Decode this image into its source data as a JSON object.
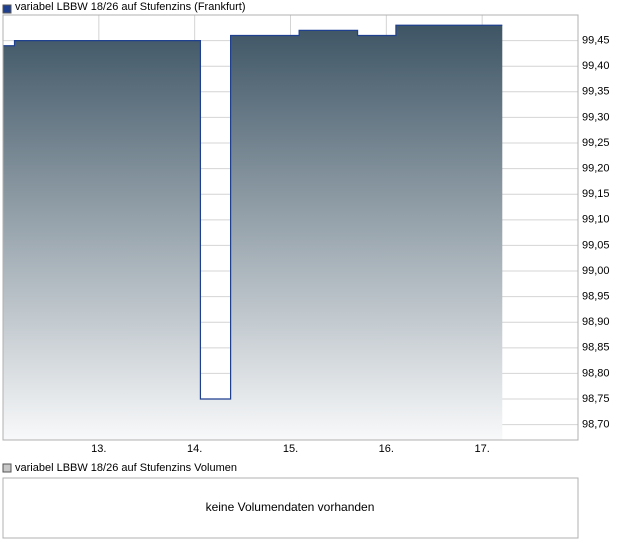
{
  "chart_data": {
    "type": "area",
    "series": [
      {
        "name": "variabel LBBW 18/26 auf Stufenzins (Frankfurt)",
        "color": "#1f3f8f",
        "x": [
          12,
          12.12,
          12.12,
          14.06,
          14.06,
          14.375,
          14.375,
          15.09,
          15.09,
          15.7,
          15.7,
          16.1,
          16.1,
          17.21
        ],
        "values": [
          99.44,
          99.44,
          99.45,
          99.45,
          98.75,
          98.75,
          99.46,
          99.46,
          99.47,
          99.47,
          99.46,
          99.46,
          99.48,
          99.48
        ]
      }
    ],
    "xlim": [
      12,
      18
    ],
    "xticks": [
      {
        "value": 13,
        "label": "13."
      },
      {
        "value": 14,
        "label": "14."
      },
      {
        "value": 15,
        "label": "15."
      },
      {
        "value": 16,
        "label": "16."
      },
      {
        "value": 17,
        "label": "17."
      }
    ],
    "ylim": [
      98.67,
      99.5
    ],
    "yticks": [
      {
        "value": 98.7,
        "label": "98,70"
      },
      {
        "value": 98.75,
        "label": "98,75"
      },
      {
        "value": 98.8,
        "label": "98,80"
      },
      {
        "value": 98.85,
        "label": "98,85"
      },
      {
        "value": 98.9,
        "label": "98,90"
      },
      {
        "value": 98.95,
        "label": "98,95"
      },
      {
        "value": 99.0,
        "label": "99,00"
      },
      {
        "value": 99.05,
        "label": "99,05"
      },
      {
        "value": 99.1,
        "label": "99,10"
      },
      {
        "value": 99.15,
        "label": "99,15"
      },
      {
        "value": 99.2,
        "label": "99,20"
      },
      {
        "value": 99.25,
        "label": "99,25"
      },
      {
        "value": 99.3,
        "label": "99,30"
      },
      {
        "value": 99.35,
        "label": "99,35"
      },
      {
        "value": 99.4,
        "label": "99,40"
      },
      {
        "value": 99.45,
        "label": "99,45"
      }
    ],
    "grid": true,
    "volume_legend": "variabel LBBW 18/26 auf Stufenzins Volumen",
    "volume_message": "keine Volumendaten vorhanden"
  }
}
